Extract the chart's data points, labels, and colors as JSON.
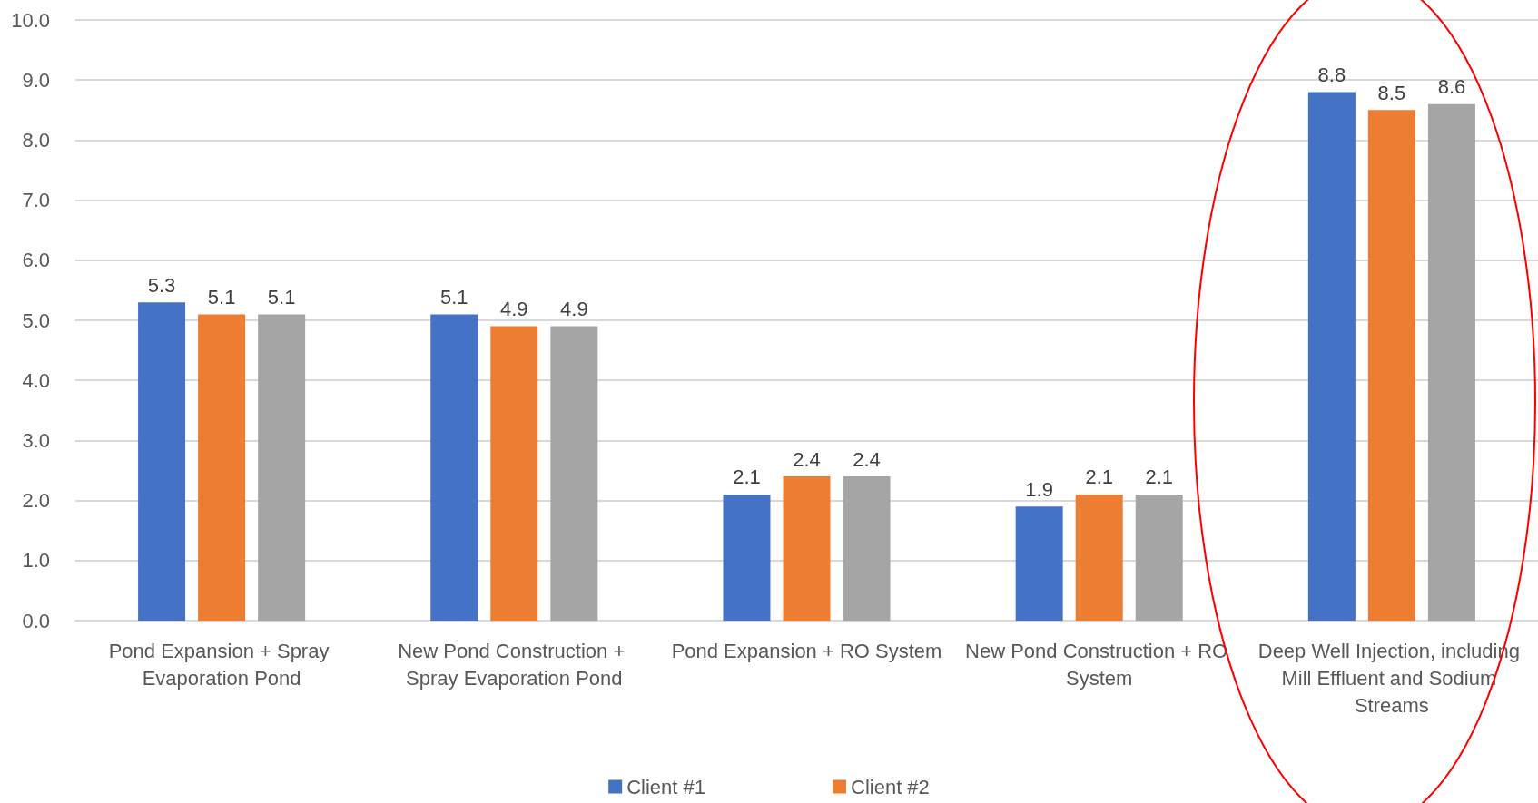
{
  "chart_data": {
    "type": "bar",
    "categories": [
      "Pond Expansion + Spray Evaporation Pond",
      "New Pond Construction + Spray Evaporation Pond",
      "Pond Expansion + RO System",
      "New Pond Construction + RO System",
      "Deep Well Injection, including Mill Effluent and Sodium Streams"
    ],
    "series": [
      {
        "name": "Client #1",
        "color": "#4472c4",
        "values": [
          5.3,
          5.1,
          2.1,
          1.9,
          8.8
        ]
      },
      {
        "name": "Client #2",
        "color": "#ed7d31",
        "values": [
          5.1,
          4.9,
          2.4,
          2.1,
          8.5
        ]
      },
      {
        "color": "#a5a5a5",
        "values": [
          5.1,
          4.9,
          2.4,
          2.1,
          8.6
        ]
      }
    ],
    "ylim": [
      0,
      10
    ],
    "yticks": [
      "0.0",
      "1.0",
      "2.0",
      "3.0",
      "4.0",
      "5.0",
      "6.0",
      "7.0",
      "8.0",
      "9.0",
      "10.0"
    ],
    "grid": "y",
    "legend": "bottom",
    "data_labels": true
  }
}
